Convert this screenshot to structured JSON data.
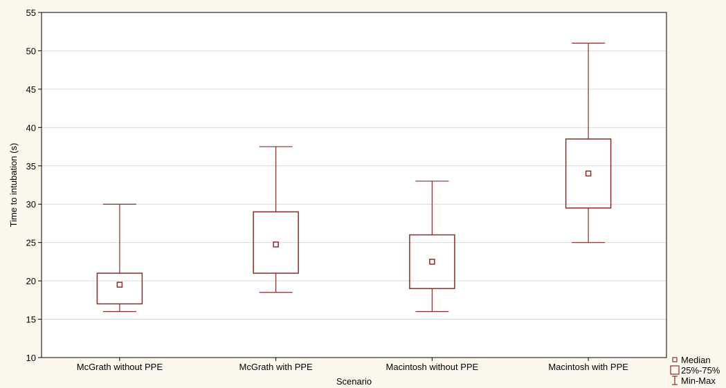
{
  "chart_data": {
    "type": "box",
    "title": "",
    "xlabel": "Scenario",
    "ylabel": "Time to intubation (s)",
    "ylim": [
      10,
      55
    ],
    "yticks": [
      10,
      15,
      20,
      25,
      30,
      35,
      40,
      45,
      50,
      55
    ],
    "grid": true,
    "categories": [
      "McGrath without PPE",
      "McGrath with PPE",
      "Macintosh without PPE",
      "Macintosh with PPE"
    ],
    "boxes": [
      {
        "category": "McGrath without PPE",
        "min": 16,
        "q1": 17,
        "median": 19.5,
        "q3": 21,
        "max": 30
      },
      {
        "category": "McGrath with PPE",
        "min": 18.5,
        "q1": 21,
        "median": 24.75,
        "q3": 29,
        "max": 37.5
      },
      {
        "category": "Macintosh without PPE",
        "min": 16,
        "q1": 19,
        "median": 22.5,
        "q3": 26,
        "max": 33
      },
      {
        "category": "Macintosh with PPE",
        "min": 25,
        "q1": 29.5,
        "median": 34,
        "q3": 38.5,
        "max": 51
      }
    ],
    "legend": {
      "placement": "bottom-right",
      "entries": [
        "Median",
        "25%-75%",
        "Min-Max"
      ]
    },
    "colors": {
      "box": "#8b2a2a",
      "background": "#fdf8ee",
      "plot_bg": "#ffffff",
      "grid": "#d9d9d9"
    }
  }
}
